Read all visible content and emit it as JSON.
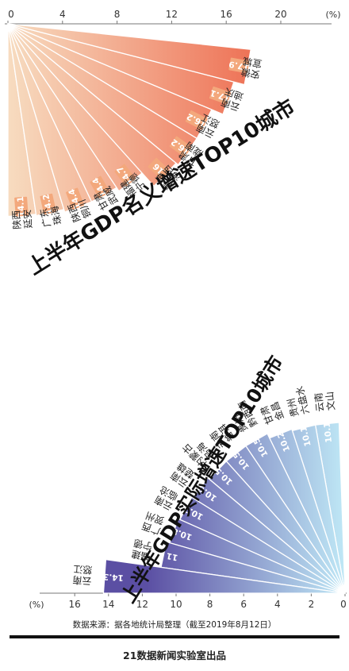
{
  "chart_data": [
    {
      "type": "bar",
      "title": "上半年GDP名义增速TOP10城市",
      "axis_unit": "(%)",
      "ticks": [
        0,
        4,
        8,
        12,
        16,
        20
      ],
      "range": [
        0,
        20
      ],
      "colors": {
        "start": "#f7dcc0",
        "end": "#ee7256",
        "label_bg": "#f3a87c"
      },
      "categories": [
        "陕西 延安",
        "广东 珠海",
        "陕西 铜川",
        "甘肃 武威",
        "福建 宁德",
        "青海 海西",
        "甘肃 陇南",
        "云南 怒江",
        "云南 迪庆",
        "安徽 宣城"
      ],
      "label_lines": [
        [
          "陕西",
          "延安"
        ],
        [
          "广东",
          "珠海"
        ],
        [
          "陕西",
          "铜川"
        ],
        [
          "甘肃",
          "武威"
        ],
        [
          "福建",
          "宁德"
        ],
        [
          "青海",
          "海西"
        ],
        [
          "甘肃",
          "陇南"
        ],
        [
          "云南",
          "怒江"
        ],
        [
          "云南",
          "迪庆"
        ],
        [
          "安徽",
          "宣城"
        ]
      ],
      "values": [
        14.1,
        14.2,
        14.4,
        14.4,
        14.7,
        16,
        16.2,
        16.2,
        17.1,
        17.9
      ]
    },
    {
      "type": "bar",
      "title": "上半年GDP实际增速TOP10城市",
      "axis_unit": "(%)",
      "ticks": [
        16,
        14,
        12,
        10,
        8,
        6,
        4,
        2,
        0
      ],
      "range": [
        0,
        16
      ],
      "colors": {
        "start": "#bfe8f6",
        "end": "#5b4fa3"
      },
      "categories": [
        "云南 文山",
        "贵州 六盘水",
        "甘肃 金昌",
        "贵州 黔西南",
        "云南 普洱",
        "内蒙古 乌海",
        "云南 楚雄",
        "云南 临沧",
        "广西 贺州",
        "福建 宁德",
        "云南 怒江"
      ],
      "label_lines": [
        [
          "云南",
          "文山"
        ],
        [
          "贵州",
          "六盘水"
        ],
        [
          "甘肃",
          "金昌"
        ],
        [
          "贵州",
          "黔西南"
        ],
        [
          "云南",
          "普洱"
        ],
        [
          "内蒙古",
          "乌海"
        ],
        [
          "云南",
          "楚雄"
        ],
        [
          "云南",
          "临沧"
        ],
        [
          "广西",
          "贺州"
        ],
        [
          "福建",
          "宁德"
        ],
        [
          "云南",
          "怒江"
        ]
      ],
      "values": [
        10.1,
        10.1,
        10.2,
        10.5,
        10.5,
        10.5,
        10.6,
        10.7,
        10.8,
        11,
        14.3
      ]
    }
  ],
  "footer": {
    "source": "数据来源：据各地统计局整理（截至2019年8月12日）",
    "publisher": "21数据新闻实验室出品"
  }
}
